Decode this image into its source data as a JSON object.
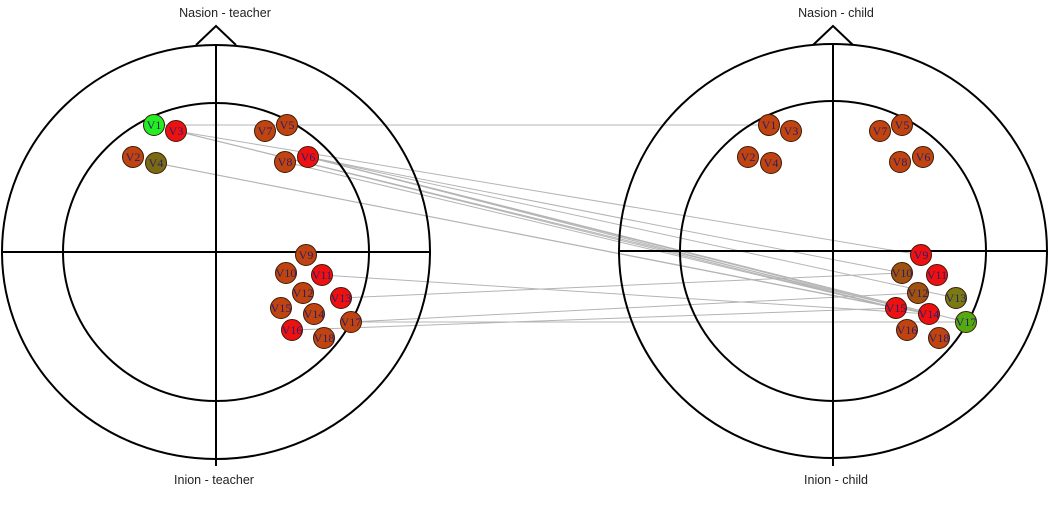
{
  "heads": [
    {
      "id": "teacher",
      "nasion_label": "Nasion - teacher",
      "inion_label": "Inion - teacher",
      "electrodes": [
        {
          "label": "V1",
          "color": "#22ee22"
        },
        {
          "label": "V3",
          "color": "#ee1111"
        },
        {
          "label": "V2",
          "color": "#c0440f"
        },
        {
          "label": "V4",
          "color": "#7a6a12"
        },
        {
          "label": "V7",
          "color": "#c0440f"
        },
        {
          "label": "V5",
          "color": "#c0440f"
        },
        {
          "label": "V8",
          "color": "#c0440f"
        },
        {
          "label": "V6",
          "color": "#ee1111"
        },
        {
          "label": "V9",
          "color": "#c0440f"
        },
        {
          "label": "V10",
          "color": "#c0440f"
        },
        {
          "label": "V11",
          "color": "#ee1111"
        },
        {
          "label": "V12",
          "color": "#c0440f"
        },
        {
          "label": "V13",
          "color": "#ee1111"
        },
        {
          "label": "V15",
          "color": "#c0440f"
        },
        {
          "label": "V14",
          "color": "#c0440f"
        },
        {
          "label": "V17",
          "color": "#c0440f"
        },
        {
          "label": "V16",
          "color": "#ee1111"
        },
        {
          "label": "V18",
          "color": "#c0440f"
        }
      ]
    },
    {
      "id": "child",
      "nasion_label": "Nasion - child",
      "inion_label": "Inion - child",
      "electrodes": [
        {
          "label": "V1",
          "color": "#c0440f"
        },
        {
          "label": "V3",
          "color": "#c0440f"
        },
        {
          "label": "V2",
          "color": "#c0440f"
        },
        {
          "label": "V4",
          "color": "#c0440f"
        },
        {
          "label": "V7",
          "color": "#c0440f"
        },
        {
          "label": "V5",
          "color": "#c0440f"
        },
        {
          "label": "V8",
          "color": "#c0440f"
        },
        {
          "label": "V6",
          "color": "#c0440f"
        },
        {
          "label": "V9",
          "color": "#ee1111"
        },
        {
          "label": "V10",
          "color": "#a0520f"
        },
        {
          "label": "V11",
          "color": "#ee1111"
        },
        {
          "label": "V12",
          "color": "#a0520f"
        },
        {
          "label": "V13",
          "color": "#7a7a12"
        },
        {
          "label": "V15",
          "color": "#ee1111"
        },
        {
          "label": "V14",
          "color": "#ee1111"
        },
        {
          "label": "V17",
          "color": "#55aa11"
        },
        {
          "label": "V16",
          "color": "#c0440f"
        },
        {
          "label": "V18",
          "color": "#c0440f"
        }
      ]
    }
  ],
  "connections": [
    {
      "from": "V1",
      "to": "V1"
    },
    {
      "from": "V3",
      "to": "V9"
    },
    {
      "from": "V3",
      "to": "V15"
    },
    {
      "from": "V3",
      "to": "V14"
    },
    {
      "from": "V4",
      "to": "V15"
    },
    {
      "from": "V4",
      "to": "V14"
    },
    {
      "from": "V6",
      "to": "V10"
    },
    {
      "from": "V6",
      "to": "V13"
    },
    {
      "from": "V6",
      "to": "V15"
    },
    {
      "from": "V6",
      "to": "V14"
    },
    {
      "from": "V6",
      "to": "V17"
    },
    {
      "from": "V8",
      "to": "V15"
    },
    {
      "from": "V11",
      "to": "V14"
    },
    {
      "from": "V13",
      "to": "V10"
    },
    {
      "from": "V17",
      "to": "V12"
    },
    {
      "from": "V17",
      "to": "V17"
    },
    {
      "from": "V16",
      "to": "V15"
    }
  ]
}
